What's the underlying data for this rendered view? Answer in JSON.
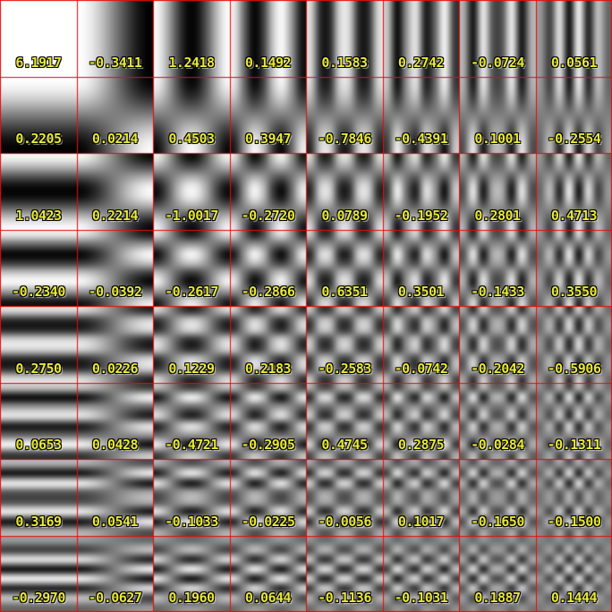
{
  "figure": {
    "size": 684,
    "rows": 8,
    "cols": 8,
    "grid_color": "#ee0808",
    "label_color": "#e8e83a",
    "pattern_low_color": "#000000",
    "pattern_high_color": "#ffffff"
  },
  "chart_data": {
    "type": "heatmap",
    "title": "",
    "rows": 8,
    "cols": 8,
    "cell_content": "2D DCT basis function per cell; horizontal frequency increases left to right, vertical frequency increases top to bottom; each cell labeled with its coefficient",
    "values": [
      [
        6.1917,
        -0.3411,
        1.2418,
        0.1492,
        0.1583,
        0.2742,
        -0.0724,
        0.0561
      ],
      [
        0.2205,
        0.0214,
        0.4503,
        0.3947,
        -0.7846,
        -0.4391,
        0.1001,
        -0.2554
      ],
      [
        1.0423,
        0.2214,
        -1.0017,
        -0.272,
        0.0789,
        -0.1952,
        0.2801,
        0.4713
      ],
      [
        -0.234,
        -0.0392,
        -0.2617,
        -0.2866,
        0.6351,
        0.3501,
        -0.1433,
        0.355
      ],
      [
        0.275,
        0.0226,
        0.1229,
        0.2183,
        -0.2583,
        -0.0742,
        -0.2042,
        -0.5906
      ],
      [
        0.0653,
        0.0428,
        -0.4721,
        -0.2905,
        0.4745,
        0.2875,
        -0.0284,
        -0.1311
      ],
      [
        0.3169,
        0.0541,
        -0.1033,
        -0.0225,
        -0.0056,
        0.1017,
        -0.165,
        -0.15
      ],
      [
        -0.297,
        -0.0627,
        0.196,
        0.0644,
        -0.1136,
        -0.1031,
        0.1887,
        0.1444
      ]
    ]
  },
  "labels": [
    [
      "6.1917",
      "-0.3411",
      "1.2418",
      "0.1492",
      "0.1583",
      "0.2742",
      "-0.0724",
      "0.0561"
    ],
    [
      "0.2205",
      "0.0214",
      "0.4503",
      "0.3947",
      "-0.7846",
      "-0.4391",
      "0.1001",
      "-0.2554"
    ],
    [
      "1.0423",
      "0.2214",
      "-1.0017",
      "-0.2720",
      "0.0789",
      "-0.1952",
      "0.2801",
      "0.4713"
    ],
    [
      "-0.2340",
      "-0.0392",
      "-0.2617",
      "-0.2866",
      "0.6351",
      "0.3501",
      "-0.1433",
      "0.3550"
    ],
    [
      "0.2750",
      "0.0226",
      "0.1229",
      "0.2183",
      "-0.2583",
      "-0.0742",
      "-0.2042",
      "-0.5906"
    ],
    [
      "0.0653",
      "0.0428",
      "-0.4721",
      "-0.2905",
      "0.4745",
      "0.2875",
      "-0.0284",
      "-0.1311"
    ],
    [
      "0.3169",
      "0.0541",
      "-0.1033",
      "-0.0225",
      "-0.0056",
      "0.1017",
      "-0.1650",
      "-0.1500"
    ],
    [
      "-0.2970",
      "-0.0627",
      "0.1960",
      "0.0644",
      "-0.1136",
      "-0.1031",
      "0.1887",
      "0.1444"
    ]
  ]
}
